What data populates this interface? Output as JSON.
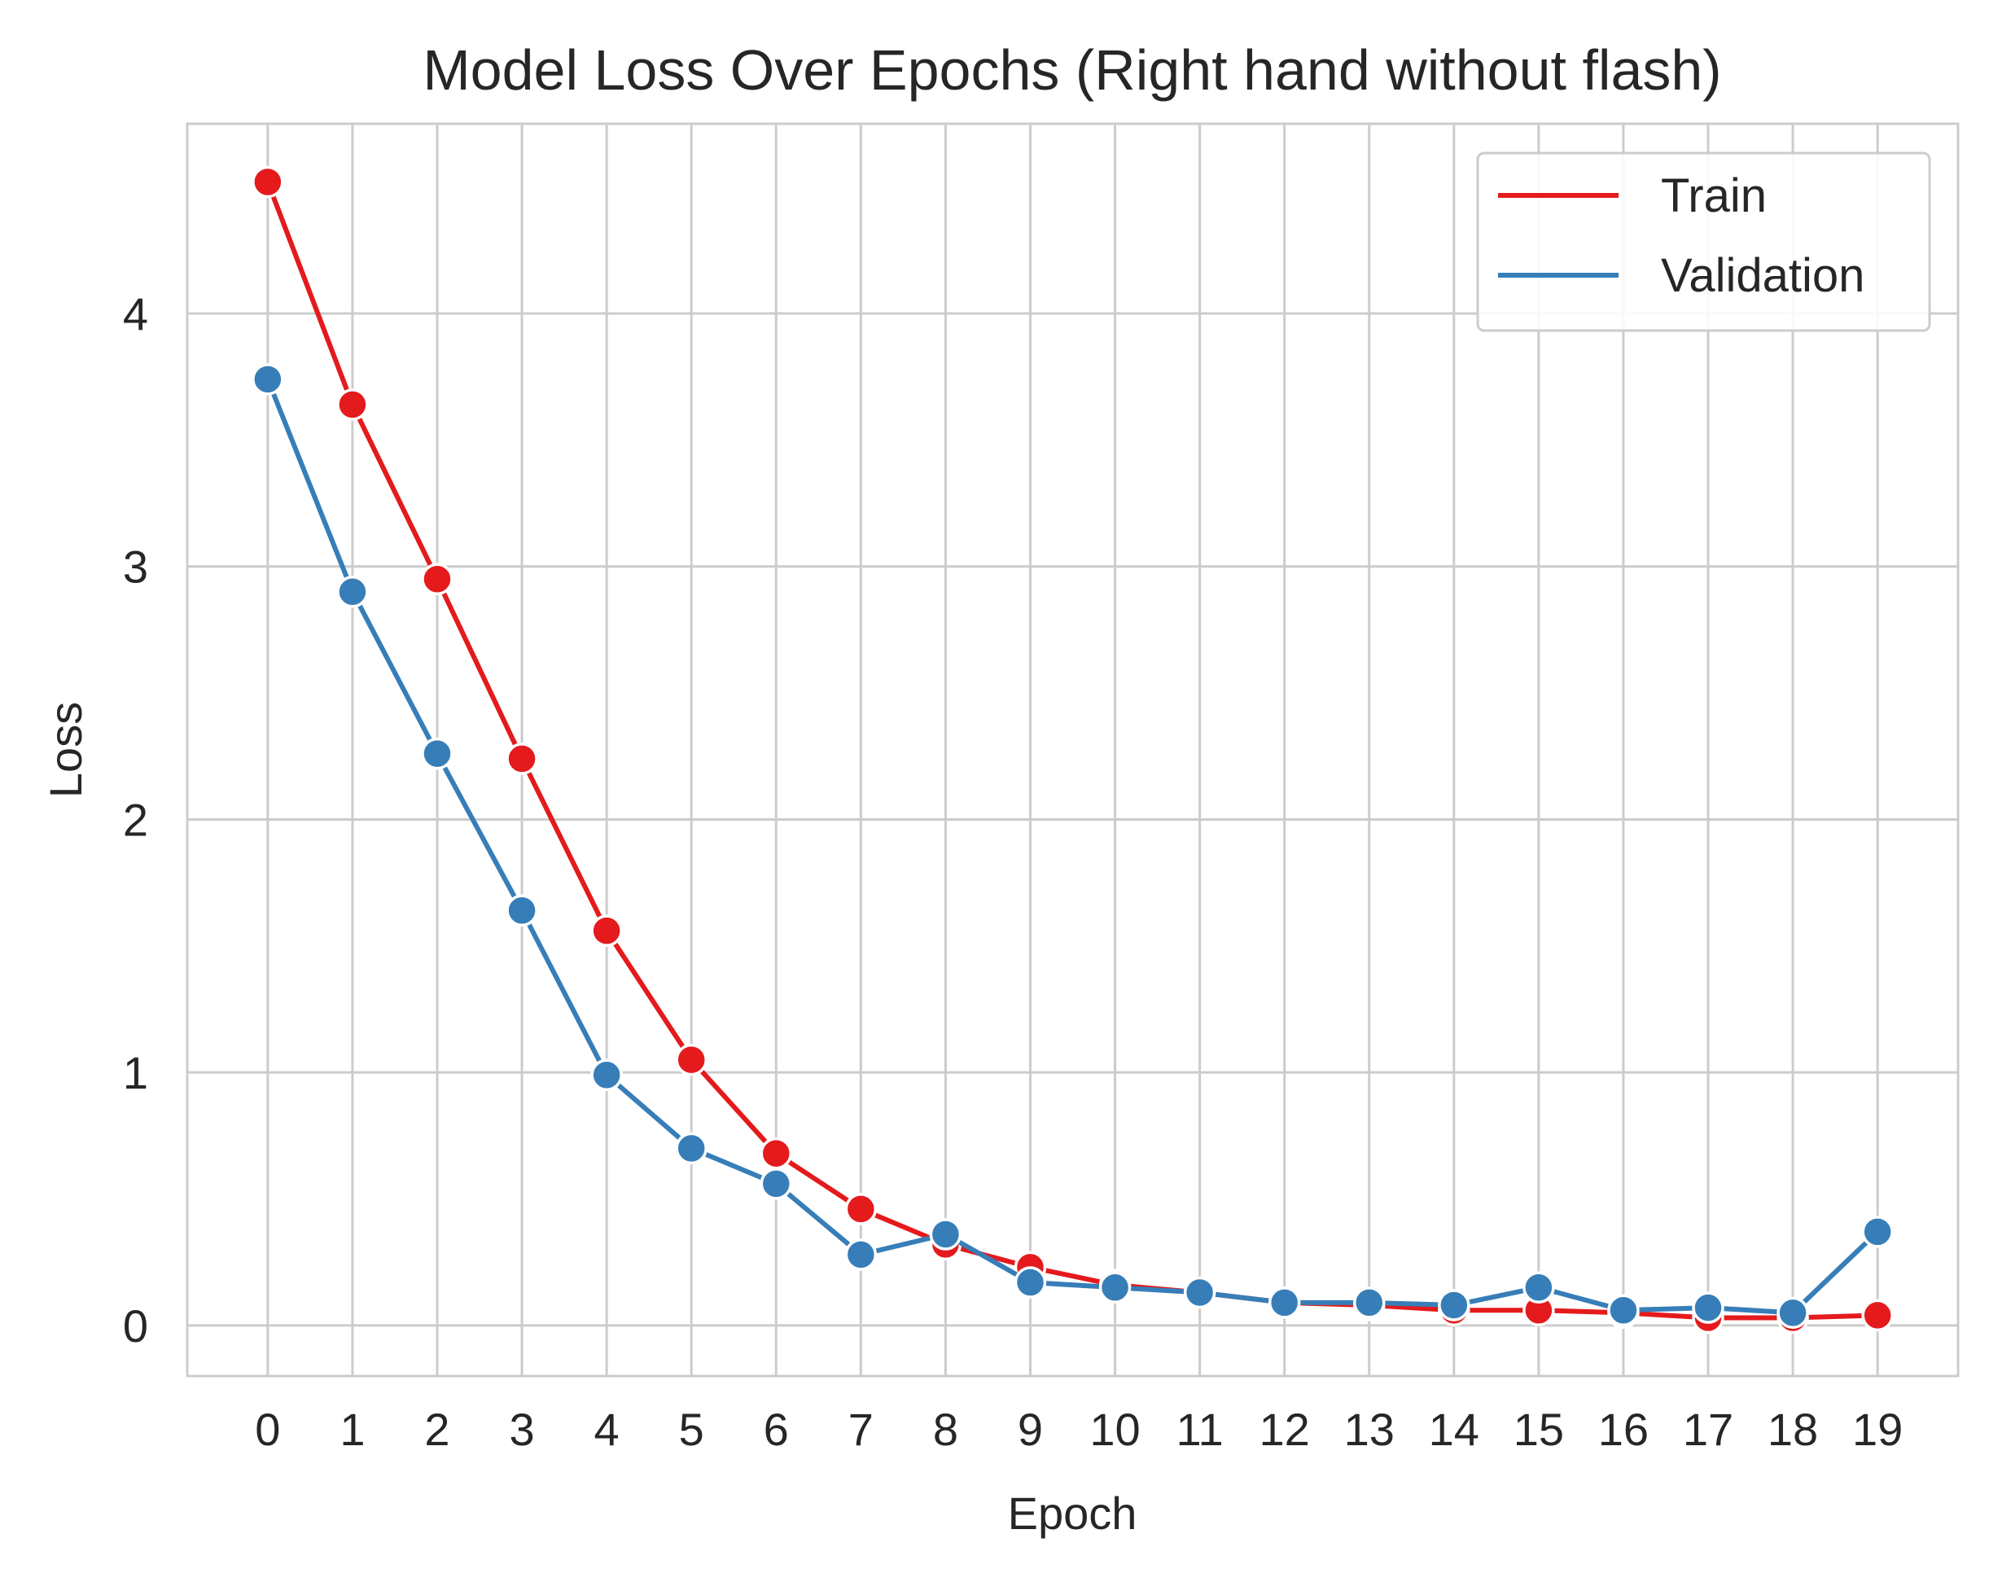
{
  "chart_data": {
    "type": "line",
    "title": "Model Loss Over Epochs (Right hand without flash)",
    "xlabel": "Epoch",
    "ylabel": "Loss",
    "x": [
      0,
      1,
      2,
      3,
      4,
      5,
      6,
      7,
      8,
      9,
      10,
      11,
      12,
      13,
      14,
      15,
      16,
      17,
      18,
      19
    ],
    "x_tick_labels": [
      "0",
      "1",
      "2",
      "3",
      "4",
      "5",
      "6",
      "7",
      "8",
      "9",
      "10",
      "11",
      "12",
      "13",
      "14",
      "15",
      "16",
      "17",
      "18",
      "19"
    ],
    "y_ticks": [
      0,
      1,
      2,
      3,
      4
    ],
    "y_tick_labels": [
      "0",
      "1",
      "2",
      "3",
      "4"
    ],
    "xlim": [
      -0.95,
      19.95
    ],
    "ylim": [
      -0.2,
      4.75
    ],
    "grid": true,
    "legend_position": "top-right",
    "series": [
      {
        "name": "Train",
        "color": "#e41a1c",
        "values": [
          4.52,
          3.64,
          2.95,
          2.24,
          1.56,
          1.05,
          0.68,
          0.46,
          0.32,
          0.23,
          0.16,
          0.13,
          0.09,
          0.08,
          0.06,
          0.06,
          0.05,
          0.03,
          0.03,
          0.04
        ]
      },
      {
        "name": "Validation",
        "color": "#377eb8",
        "values": [
          3.74,
          2.9,
          2.26,
          1.64,
          0.99,
          0.7,
          0.56,
          0.28,
          0.36,
          0.17,
          0.15,
          0.13,
          0.09,
          0.09,
          0.08,
          0.15,
          0.06,
          0.07,
          0.05,
          0.37
        ]
      }
    ]
  }
}
